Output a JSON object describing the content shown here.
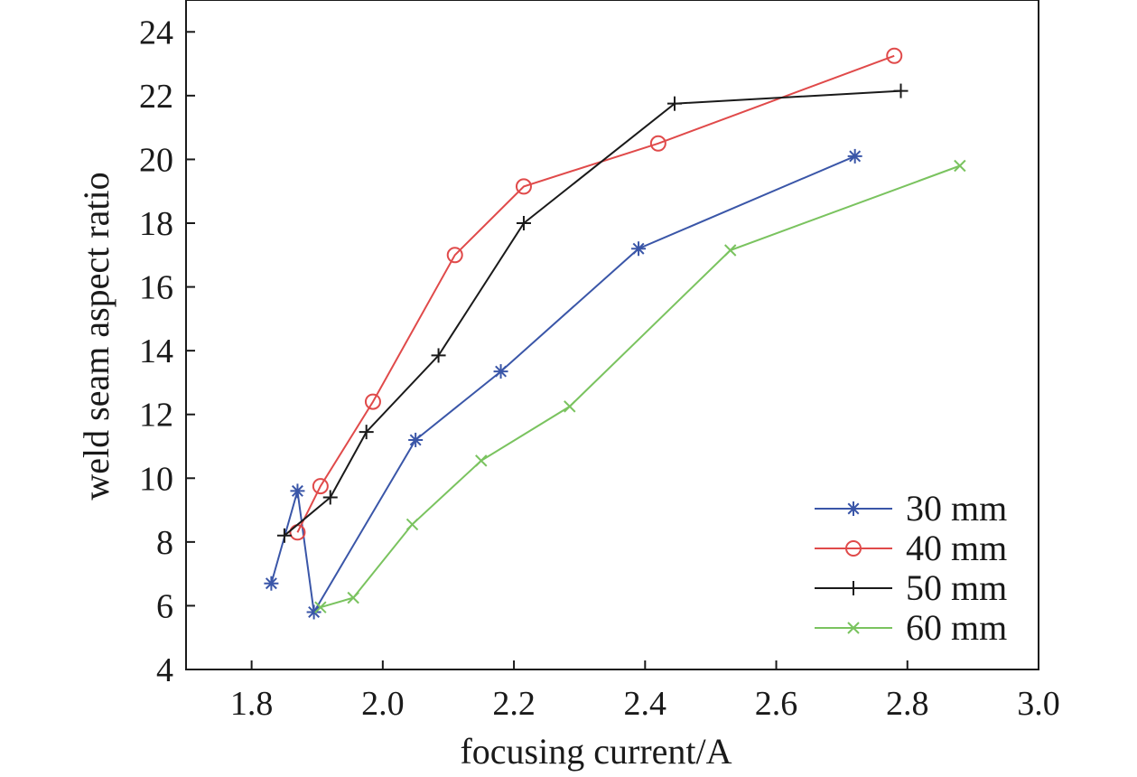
{
  "chart_data": {
    "type": "line",
    "title": "",
    "xlabel": "focusing current/A",
    "ylabel": "weld seam aspect ratio",
    "xlim": [
      1.7,
      3.0
    ],
    "ylim": [
      4,
      25
    ],
    "xticks": [
      1.8,
      2.0,
      2.2,
      2.4,
      2.6,
      2.8,
      3.0
    ],
    "xtick_labels": [
      "1.8",
      "2.0",
      "2.2",
      "2.4",
      "2.6",
      "2.8",
      "3.0"
    ],
    "yticks": [
      4,
      6,
      8,
      10,
      12,
      14,
      16,
      18,
      20,
      22,
      24
    ],
    "ytick_labels": [
      "4",
      "6",
      "8",
      "10",
      "12",
      "14",
      "16",
      "18",
      "20",
      "22",
      "24"
    ],
    "grid": false,
    "legend_position": "bottom-right",
    "series": [
      {
        "name": "30 mm",
        "color": "#3a56a8",
        "marker": "asterisk",
        "x": [
          1.83,
          1.87,
          1.895,
          2.05,
          2.18,
          2.39,
          2.72
        ],
        "y": [
          6.7,
          9.6,
          5.8,
          11.2,
          13.35,
          17.2,
          20.1
        ]
      },
      {
        "name": "40 mm",
        "color": "#e04a4a",
        "marker": "circle",
        "x": [
          1.87,
          1.905,
          1.985,
          2.11,
          2.215,
          2.42,
          2.78
        ],
        "y": [
          8.3,
          9.75,
          12.4,
          17.0,
          19.15,
          20.5,
          23.25
        ]
      },
      {
        "name": "50 mm",
        "color": "#1a1a1a",
        "marker": "plus",
        "x": [
          1.85,
          1.92,
          1.975,
          2.085,
          2.215,
          2.445,
          2.79
        ],
        "y": [
          8.2,
          9.4,
          11.45,
          13.85,
          18.0,
          21.75,
          22.15
        ]
      },
      {
        "name": "60 mm",
        "color": "#7ac35f",
        "marker": "x",
        "x": [
          1.905,
          1.955,
          2.045,
          2.15,
          2.285,
          2.53,
          2.88
        ],
        "y": [
          5.95,
          6.25,
          8.55,
          10.55,
          12.25,
          17.15,
          19.8
        ]
      }
    ]
  }
}
